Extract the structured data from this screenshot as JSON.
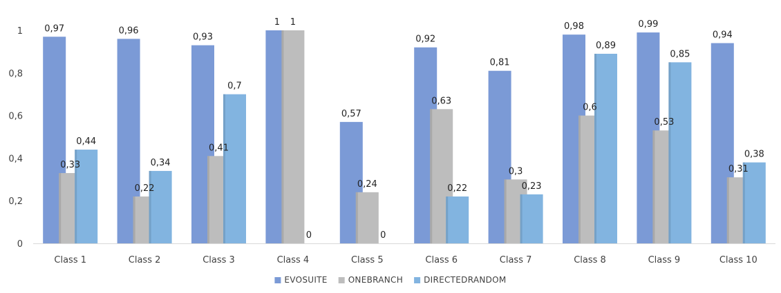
{
  "chart_data": {
    "type": "bar",
    "title": "",
    "xlabel": "",
    "ylabel": "",
    "ylim": [
      0,
      1
    ],
    "yticks": [
      0,
      0.2,
      0.4,
      0.6,
      0.8,
      1
    ],
    "ytick_labels": [
      "0",
      "0,2",
      "0,4",
      "0,6",
      "0,8",
      "1"
    ],
    "grid": false,
    "legend_position": "bottom",
    "categories": [
      "Class 1",
      "Class 2",
      "Class 3",
      "Class 4",
      "Class 5",
      "Class 6",
      "Class 7",
      "Class 8",
      "Class 9",
      "Class 10"
    ],
    "series": [
      {
        "name": "EVOSUITE",
        "color": "#7b9ad6",
        "values": [
          0.97,
          0.96,
          0.93,
          1,
          0.57,
          0.92,
          0.81,
          0.98,
          0.99,
          0.94
        ],
        "labels": [
          "0,97",
          "0,96",
          "0,93",
          "1",
          "0,57",
          "0,92",
          "0,81",
          "0,98",
          "0,99",
          "0,94"
        ]
      },
      {
        "name": "ONEBRANCH",
        "color": "#bdbdbd",
        "values": [
          0.33,
          0.22,
          0.41,
          1,
          0.24,
          0.63,
          0.3,
          0.6,
          0.53,
          0.31
        ],
        "labels": [
          "0,33",
          "0,22",
          "0,41",
          "1",
          "0,24",
          "0,63",
          "0,3",
          "0,6",
          "0,53",
          "0,31"
        ]
      },
      {
        "name": "DIRECTEDRANDOM",
        "color": "#82b4e0",
        "values": [
          0.44,
          0.34,
          0.7,
          0,
          0,
          0.22,
          0.23,
          0.89,
          0.85,
          0.38
        ],
        "labels": [
          "0,44",
          "0,34",
          "0,7",
          "0",
          "0",
          "0,22",
          "0,23",
          "0,89",
          "0,85",
          "0,38"
        ]
      }
    ]
  }
}
